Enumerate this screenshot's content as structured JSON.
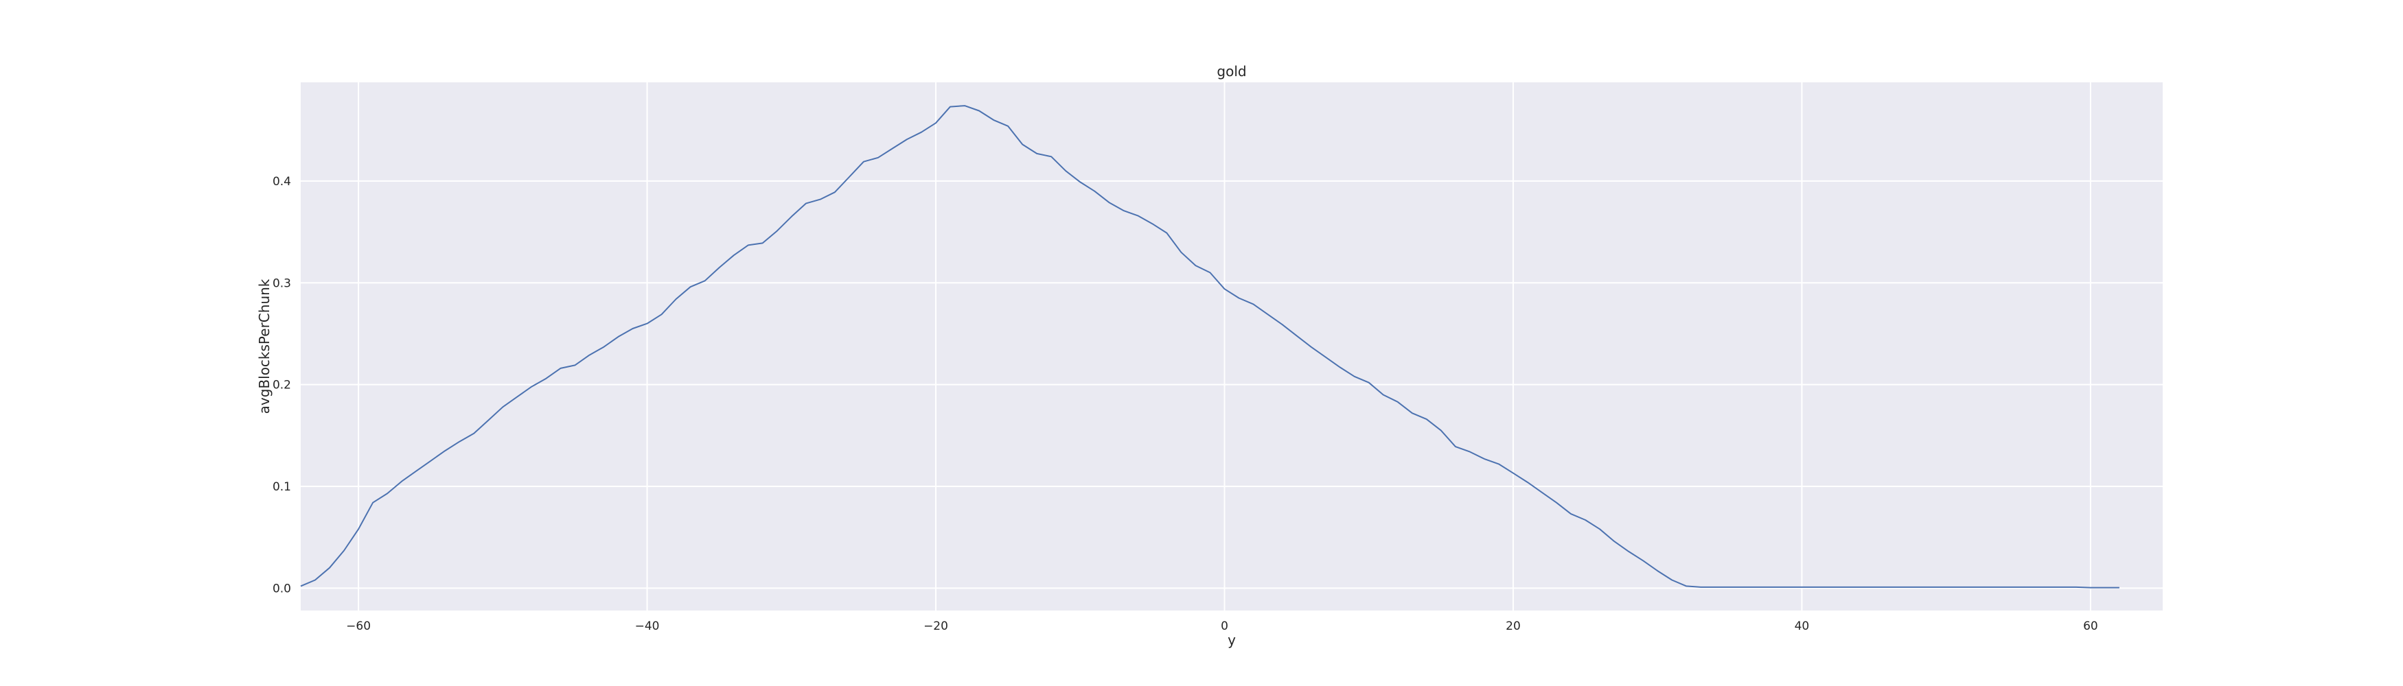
{
  "chart_data": {
    "type": "line",
    "title": "gold",
    "xlabel": "y",
    "ylabel": "avgBlocksPerChunk",
    "xlim": [
      -64,
      65
    ],
    "ylim": [
      -0.022,
      0.497
    ],
    "xticks": [
      -60,
      -40,
      -20,
      0,
      20,
      40,
      60
    ],
    "yticks": [
      0.0,
      0.1,
      0.2,
      0.3,
      0.4
    ],
    "xtick_labels": [
      "−60",
      "−40",
      "−20",
      "0",
      "20",
      "40",
      "60"
    ],
    "ytick_labels": [
      "0.0",
      "0.1",
      "0.2",
      "0.3",
      "0.4"
    ],
    "grid": true,
    "colors": {
      "background": "#eaeaf2",
      "grid": "#ffffff",
      "line": "#4c72b0",
      "text": "#262626"
    },
    "series": [
      {
        "x": [
          -64,
          -63,
          -62,
          -61,
          -60,
          -59,
          -58,
          -57,
          -56,
          -55,
          -54,
          -53,
          -52,
          -51,
          -50,
          -49,
          -48,
          -47,
          -46,
          -45,
          -44,
          -43,
          -42,
          -41,
          -40,
          -39,
          -38,
          -37,
          -36,
          -35,
          -34,
          -33,
          -32,
          -31,
          -30,
          -29,
          -28,
          -27,
          -26,
          -25,
          -24,
          -23,
          -22,
          -21,
          -20,
          -19,
          -18,
          -17,
          -16,
          -15,
          -14,
          -13,
          -12,
          -11,
          -10,
          -9,
          -8,
          -7,
          -6,
          -5,
          -4,
          -3,
          -2,
          -1,
          0,
          1,
          2,
          3,
          4,
          5,
          6,
          7,
          8,
          9,
          10,
          11,
          12,
          13,
          14,
          15,
          16,
          17,
          18,
          19,
          20,
          21,
          22,
          23,
          24,
          25,
          26,
          27,
          28,
          29,
          30,
          31,
          32,
          33,
          34,
          35,
          36,
          37,
          38,
          39,
          40,
          41,
          42,
          43,
          44,
          45,
          46,
          47,
          48,
          49,
          50,
          51,
          52,
          53,
          54,
          55,
          56,
          57,
          58,
          59,
          60,
          61,
          62
        ],
        "values": [
          0.002,
          0.008,
          0.02,
          0.037,
          0.058,
          0.084,
          0.093,
          0.105,
          0.115,
          0.125,
          0.135,
          0.144,
          0.152,
          0.165,
          0.178,
          0.188,
          0.198,
          0.206,
          0.216,
          0.219,
          0.229,
          0.237,
          0.247,
          0.255,
          0.26,
          0.269,
          0.284,
          0.296,
          0.302,
          0.315,
          0.327,
          0.337,
          0.339,
          0.351,
          0.365,
          0.378,
          0.382,
          0.389,
          0.404,
          0.419,
          0.423,
          0.432,
          0.441,
          0.448,
          0.457,
          0.473,
          0.474,
          0.469,
          0.46,
          0.454,
          0.436,
          0.427,
          0.424,
          0.41,
          0.399,
          0.39,
          0.379,
          0.371,
          0.366,
          0.358,
          0.349,
          0.33,
          0.317,
          0.31,
          0.294,
          0.285,
          0.279,
          0.269,
          0.259,
          0.248,
          0.237,
          0.227,
          0.217,
          0.208,
          0.202,
          0.19,
          0.183,
          0.172,
          0.166,
          0.155,
          0.139,
          0.134,
          0.127,
          0.122,
          0.113,
          0.104,
          0.094,
          0.084,
          0.073,
          0.067,
          0.058,
          0.046,
          0.036,
          0.027,
          0.017,
          0.008,
          0.002,
          0.001,
          0.001,
          0.001,
          0.001,
          0.001,
          0.001,
          0.001,
          0.001,
          0.001,
          0.001,
          0.001,
          0.001,
          0.001,
          0.001,
          0.001,
          0.001,
          0.001,
          0.001,
          0.001,
          0.001,
          0.001,
          0.001,
          0.001,
          0.001,
          0.001,
          0.001,
          0.001,
          0.0005,
          0.0005,
          0.0005
        ]
      }
    ]
  }
}
